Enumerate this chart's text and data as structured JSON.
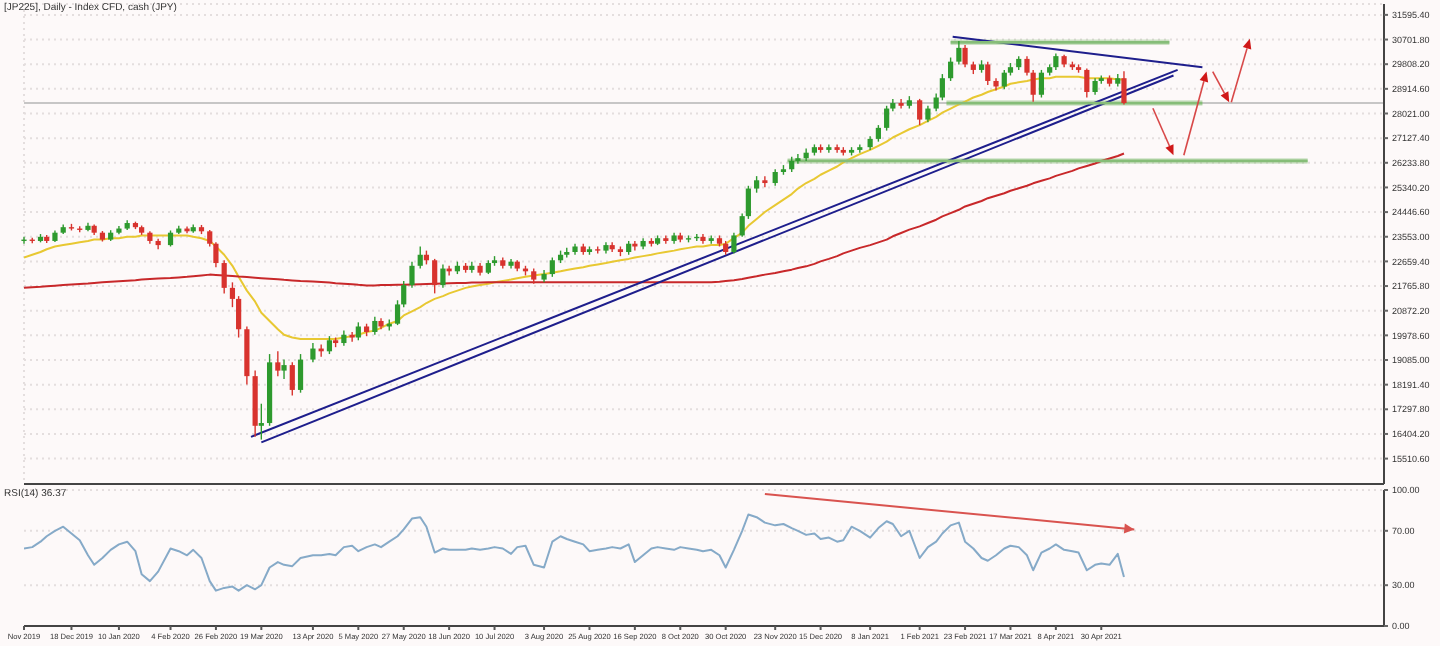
{
  "chart_data": [
    {
      "type": "candlestick",
      "title": "[JP225], Daily - Index CFD, cash (JPY)",
      "x": [
        "2019-11-25",
        "2019-11-29",
        "2019-12-03",
        "2019-12-06",
        "2019-12-10",
        "2019-12-14",
        "2019-12-18",
        "2019-12-22",
        "2019-12-26",
        "2019-12-29",
        "2020-01-02",
        "2020-01-06",
        "2020-01-10",
        "2020-01-14",
        "2020-01-18",
        "2020-01-21",
        "2020-01-25",
        "2020-01-29",
        "2020-02-04",
        "2020-02-08",
        "2020-02-12",
        "2020-02-15",
        "2020-02-19",
        "2020-02-23",
        "2020-02-26",
        "2020-03-01",
        "2020-03-05",
        "2020-03-08",
        "2020-03-12",
        "2020-03-16",
        "2020-03-19",
        "2020-03-23",
        "2020-03-27",
        "2020-03-30",
        "2020-04-03",
        "2020-04-07",
        "2020-04-13",
        "2020-04-17",
        "2020-04-21",
        "2020-04-24",
        "2020-04-28",
        "2020-05-02",
        "2020-05-05",
        "2020-05-09",
        "2020-05-13",
        "2020-05-16",
        "2020-05-20",
        "2020-05-24",
        "2020-05-27",
        "2020-05-31",
        "2020-06-04",
        "2020-06-07",
        "2020-06-11",
        "2020-06-15",
        "2020-06-18",
        "2020-06-22",
        "2020-06-26",
        "2020-06-29",
        "2020-07-03",
        "2020-07-07",
        "2020-07-10",
        "2020-07-14",
        "2020-07-18",
        "2020-07-21",
        "2020-07-25",
        "2020-07-29",
        "2020-08-03",
        "2020-08-07",
        "2020-08-11",
        "2020-08-14",
        "2020-08-18",
        "2020-08-22",
        "2020-08-25",
        "2020-08-29",
        "2020-09-02",
        "2020-09-05",
        "2020-09-09",
        "2020-09-13",
        "2020-09-16",
        "2020-09-20",
        "2020-09-24",
        "2020-09-27",
        "2020-10-01",
        "2020-10-05",
        "2020-10-08",
        "2020-10-12",
        "2020-10-16",
        "2020-10-19",
        "2020-10-23",
        "2020-10-27",
        "2020-10-30",
        "2020-11-03",
        "2020-11-07",
        "2020-11-10",
        "2020-11-14",
        "2020-11-18",
        "2020-11-23",
        "2020-11-27",
        "2020-12-01",
        "2020-12-04",
        "2020-12-08",
        "2020-12-12",
        "2020-12-15",
        "2020-12-19",
        "2020-12-23",
        "2020-12-26",
        "2020-12-30",
        "2021-01-03",
        "2021-01-08",
        "2021-01-12",
        "2021-01-16",
        "2021-01-19",
        "2021-01-23",
        "2021-01-27",
        "2021-02-01",
        "2021-02-05",
        "2021-02-09",
        "2021-02-12",
        "2021-02-16",
        "2021-02-20",
        "2021-02-23",
        "2021-02-27",
        "2021-03-03",
        "2021-03-06",
        "2021-03-10",
        "2021-03-14",
        "2021-03-17",
        "2021-03-21",
        "2021-03-25",
        "2021-03-28",
        "2021-04-01",
        "2021-04-05",
        "2021-04-08",
        "2021-04-12",
        "2021-04-16",
        "2021-04-19",
        "2021-04-23",
        "2021-04-27",
        "2021-04-30",
        "2021-05-04",
        "2021-05-08",
        "2021-05-11"
      ],
      "ohlc": [
        [
          23400,
          23550,
          23300,
          23450
        ],
        [
          23450,
          23520,
          23320,
          23400
        ],
        [
          23400,
          23650,
          23350,
          23550
        ],
        [
          23550,
          23620,
          23330,
          23400
        ],
        [
          23400,
          23780,
          23360,
          23700
        ],
        [
          23700,
          24000,
          23650,
          23900
        ],
        [
          23900,
          24020,
          23780,
          23850
        ],
        [
          23850,
          23930,
          23720,
          23800
        ],
        [
          23800,
          24060,
          23750,
          23950
        ],
        [
          23950,
          24000,
          23620,
          23700
        ],
        [
          23700,
          23760,
          23380,
          23450
        ],
        [
          23450,
          23790,
          23400,
          23700
        ],
        [
          23700,
          23940,
          23640,
          23850
        ],
        [
          23850,
          24150,
          23800,
          24050
        ],
        [
          24050,
          24100,
          23830,
          23900
        ],
        [
          23900,
          23960,
          23620,
          23700
        ],
        [
          23700,
          23750,
          23300,
          23400
        ],
        [
          23400,
          23480,
          23100,
          23250
        ],
        [
          23250,
          23780,
          23200,
          23700
        ],
        [
          23700,
          23950,
          23650,
          23850
        ],
        [
          23850,
          23920,
          23680,
          23750
        ],
        [
          23750,
          24000,
          23700,
          23900
        ],
        [
          23900,
          23980,
          23650,
          23750
        ],
        [
          23750,
          23800,
          23200,
          23300
        ],
        [
          23300,
          23350,
          22450,
          22600
        ],
        [
          22600,
          22700,
          21500,
          21700
        ],
        [
          21700,
          21900,
          21000,
          21300
        ],
        [
          21300,
          21400,
          19900,
          20200
        ],
        [
          20200,
          20300,
          18200,
          18500
        ],
        [
          18500,
          18700,
          16300,
          16700
        ],
        [
          16700,
          17500,
          16200,
          16800
        ],
        [
          16800,
          19300,
          16700,
          19000
        ],
        [
          19000,
          19400,
          18500,
          18700
        ],
        [
          18700,
          19100,
          18400,
          18900
        ],
        [
          18900,
          19000,
          17800,
          18000
        ],
        [
          18000,
          19300,
          17900,
          19100
        ],
        [
          19100,
          19700,
          19000,
          19500
        ],
        [
          19500,
          19650,
          19200,
          19400
        ],
        [
          19400,
          19950,
          19300,
          19800
        ],
        [
          19800,
          19900,
          19550,
          19700
        ],
        [
          19700,
          20150,
          19600,
          20000
        ],
        [
          20000,
          20100,
          19750,
          19900
        ],
        [
          19900,
          20450,
          19800,
          20300
        ],
        [
          20300,
          20400,
          19950,
          20100
        ],
        [
          20100,
          20650,
          20000,
          20500
        ],
        [
          20500,
          20600,
          20200,
          20300
        ],
        [
          20300,
          20550,
          20150,
          20400
        ],
        [
          20400,
          21250,
          20350,
          21100
        ],
        [
          21100,
          21950,
          21000,
          21800
        ],
        [
          21800,
          22650,
          21700,
          22500
        ],
        [
          22500,
          23200,
          22400,
          22900
        ],
        [
          22900,
          23050,
          22550,
          22700
        ],
        [
          22700,
          22750,
          21500,
          21800
        ],
        [
          21800,
          22550,
          21700,
          22400
        ],
        [
          22400,
          22500,
          22150,
          22300
        ],
        [
          22300,
          22650,
          22200,
          22500
        ],
        [
          22500,
          22600,
          22250,
          22350
        ],
        [
          22350,
          22650,
          22250,
          22500
        ],
        [
          22500,
          22600,
          22150,
          22250
        ],
        [
          22250,
          22700,
          22200,
          22600
        ],
        [
          22600,
          22850,
          22500,
          22700
        ],
        [
          22700,
          22800,
          22400,
          22500
        ],
        [
          22500,
          22750,
          22400,
          22650
        ],
        [
          22650,
          22700,
          22300,
          22400
        ],
        [
          22400,
          22500,
          22150,
          22300
        ],
        [
          22300,
          22400,
          21850,
          22000
        ],
        [
          22000,
          22350,
          21900,
          22200
        ],
        [
          22200,
          22800,
          22100,
          22700
        ],
        [
          22700,
          23050,
          22600,
          22900
        ],
        [
          22900,
          23150,
          22800,
          23000
        ],
        [
          23000,
          23300,
          22900,
          23200
        ],
        [
          23200,
          23300,
          22900,
          23000
        ],
        [
          23000,
          23200,
          22900,
          23100
        ],
        [
          23100,
          23200,
          22950,
          23050
        ],
        [
          23050,
          23350,
          22950,
          23250
        ],
        [
          23250,
          23350,
          23000,
          23100
        ],
        [
          23100,
          23200,
          22850,
          23000
        ],
        [
          23000,
          23400,
          22900,
          23300
        ],
        [
          23300,
          23400,
          23050,
          23200
        ],
        [
          23200,
          23500,
          23100,
          23400
        ],
        [
          23400,
          23500,
          23200,
          23300
        ],
        [
          23300,
          23600,
          23250,
          23500
        ],
        [
          23500,
          23600,
          23300,
          23400
        ],
        [
          23400,
          23700,
          23300,
          23600
        ],
        [
          23600,
          23700,
          23350,
          23450
        ],
        [
          23450,
          23600,
          23350,
          23500
        ],
        [
          23500,
          23650,
          23400,
          23550
        ],
        [
          23550,
          23650,
          23300,
          23400
        ],
        [
          23400,
          23600,
          23300,
          23500
        ],
        [
          23500,
          23600,
          23200,
          23300
        ],
        [
          23300,
          23400,
          22900,
          23000
        ],
        [
          23000,
          23700,
          22950,
          23600
        ],
        [
          23600,
          24400,
          23550,
          24300
        ],
        [
          24300,
          25400,
          24200,
          25300
        ],
        [
          25300,
          25750,
          25150,
          25600
        ],
        [
          25600,
          25750,
          25350,
          25500
        ],
        [
          25500,
          26000,
          25400,
          25900
        ],
        [
          25900,
          26150,
          25800,
          26000
        ],
        [
          26000,
          26450,
          25900,
          26300
        ],
        [
          26300,
          26550,
          26200,
          26400
        ],
        [
          26400,
          26750,
          26300,
          26600
        ],
        [
          26600,
          26900,
          26500,
          26800
        ],
        [
          26800,
          26900,
          26600,
          26700
        ],
        [
          26700,
          26900,
          26600,
          26800
        ],
        [
          26800,
          26900,
          26600,
          26700
        ],
        [
          26700,
          26800,
          26500,
          26600
        ],
        [
          26600,
          26800,
          26500,
          26700
        ],
        [
          26700,
          26900,
          26600,
          26800
        ],
        [
          26800,
          27200,
          26700,
          27100
        ],
        [
          27100,
          27600,
          27000,
          27500
        ],
        [
          27500,
          28300,
          27400,
          28200
        ],
        [
          28200,
          28550,
          28100,
          28400
        ],
        [
          28400,
          28550,
          28200,
          28300
        ],
        [
          28300,
          28650,
          28200,
          28500
        ],
        [
          28500,
          28550,
          27600,
          27800
        ],
        [
          27800,
          28300,
          27700,
          28200
        ],
        [
          28200,
          28750,
          28100,
          28600
        ],
        [
          28600,
          29450,
          28500,
          29300
        ],
        [
          29300,
          30050,
          29200,
          29900
        ],
        [
          29900,
          30650,
          29800,
          30400
        ],
        [
          30400,
          30500,
          29700,
          29800
        ],
        [
          29800,
          29900,
          29450,
          29600
        ],
        [
          29600,
          29950,
          29500,
          29800
        ],
        [
          29800,
          29900,
          29050,
          29200
        ],
        [
          29200,
          29300,
          28850,
          29000
        ],
        [
          29000,
          29600,
          28900,
          29500
        ],
        [
          29500,
          29850,
          29400,
          29700
        ],
        [
          29700,
          30100,
          29600,
          30000
        ],
        [
          30000,
          30100,
          29400,
          29500
        ],
        [
          29500,
          29600,
          28450,
          28700
        ],
        [
          28700,
          29600,
          28600,
          29500
        ],
        [
          29500,
          29800,
          29400,
          29700
        ],
        [
          29700,
          30200,
          29600,
          30100
        ],
        [
          30100,
          30150,
          29700,
          29800
        ],
        [
          29800,
          29900,
          29600,
          29700
        ],
        [
          29700,
          29800,
          29500,
          29600
        ],
        [
          29600,
          29650,
          28600,
          28800
        ],
        [
          28800,
          29300,
          28700,
          29200
        ],
        [
          29200,
          29400,
          29100,
          29300
        ],
        [
          29300,
          29400,
          29000,
          29100
        ],
        [
          29100,
          29450,
          29000,
          29300
        ],
        [
          29300,
          29550,
          28350,
          28400
        ]
      ],
      "colors": [
        "#2e9a2e",
        "#d8332e",
        "#2e9a2e",
        "#d8332e",
        "#2e9a2e",
        "#2e9a2e",
        "#d8332e",
        "#d8332e",
        "#2e9a2e",
        "#d8332e",
        "#d8332e",
        "#2e9a2e",
        "#2e9a2e",
        "#2e9a2e",
        "#d8332e",
        "#d8332e",
        "#d8332e",
        "#d8332e",
        "#2e9a2e",
        "#2e9a2e",
        "#d8332e",
        "#2e9a2e",
        "#d8332e",
        "#d8332e",
        "#d8332e",
        "#d8332e",
        "#d8332e",
        "#d8332e",
        "#d8332e",
        "#d8332e",
        "#2e9a2e",
        "#2e9a2e",
        "#d8332e",
        "#2e9a2e",
        "#d8332e",
        "#2e9a2e",
        "#2e9a2e",
        "#d8332e",
        "#2e9a2e",
        "#d8332e",
        "#2e9a2e",
        "#d8332e",
        "#2e9a2e",
        "#d8332e",
        "#2e9a2e",
        "#d8332e",
        "#2e9a2e",
        "#2e9a2e",
        "#2e9a2e",
        "#2e9a2e",
        "#2e9a2e",
        "#d8332e",
        "#d8332e",
        "#2e9a2e",
        "#d8332e",
        "#2e9a2e",
        "#d8332e",
        "#2e9a2e",
        "#d8332e",
        "#2e9a2e",
        "#2e9a2e",
        "#d8332e",
        "#2e9a2e",
        "#d8332e",
        "#d8332e",
        "#d8332e",
        "#2e9a2e",
        "#2e9a2e",
        "#2e9a2e",
        "#2e9a2e",
        "#2e9a2e",
        "#d8332e",
        "#2e9a2e",
        "#d8332e",
        "#2e9a2e",
        "#d8332e",
        "#d8332e",
        "#2e9a2e",
        "#d8332e",
        "#2e9a2e",
        "#d8332e",
        "#2e9a2e",
        "#d8332e",
        "#2e9a2e",
        "#d8332e",
        "#2e9a2e",
        "#2e9a2e",
        "#d8332e",
        "#2e9a2e",
        "#d8332e",
        "#d8332e",
        "#2e9a2e",
        "#2e9a2e",
        "#2e9a2e",
        "#2e9a2e",
        "#d8332e",
        "#2e9a2e",
        "#2e9a2e",
        "#2e9a2e",
        "#2e9a2e",
        "#2e9a2e",
        "#2e9a2e",
        "#d8332e",
        "#2e9a2e",
        "#d8332e",
        "#d8332e",
        "#2e9a2e",
        "#2e9a2e",
        "#2e9a2e",
        "#2e9a2e",
        "#2e9a2e",
        "#2e9a2e",
        "#d8332e",
        "#2e9a2e",
        "#d8332e",
        "#2e9a2e",
        "#2e9a2e",
        "#2e9a2e",
        "#2e9a2e",
        "#2e9a2e",
        "#d8332e",
        "#d8332e",
        "#2e9a2e",
        "#d8332e",
        "#d8332e",
        "#2e9a2e",
        "#2e9a2e",
        "#2e9a2e",
        "#d8332e",
        "#d8332e",
        "#2e9a2e",
        "#2e9a2e",
        "#2e9a2e",
        "#d8332e",
        "#d8332e",
        "#d8332e",
        "#d8332e",
        "#2e9a2e",
        "#2e9a2e",
        "#d8332e",
        "#2e9a2e",
        "#d8332e"
      ],
      "series": [
        {
          "type": "line",
          "color": "#e8c832",
          "values": [
            22800,
            22900,
            23000,
            23100,
            23200,
            23250,
            23300,
            23350,
            23400,
            23450,
            23450,
            23500,
            23500,
            23550,
            23550,
            23600,
            23600,
            23600,
            23600,
            23600,
            23600,
            23550,
            23500,
            23400,
            23200,
            22900,
            22500,
            22100,
            21600,
            21200,
            20800,
            20500,
            20200,
            20000,
            19900,
            19850,
            19850,
            19850,
            19850,
            19850,
            19900,
            19950,
            20000,
            20100,
            20150,
            20250,
            20400,
            20500,
            20700,
            20850,
            21000,
            21150,
            21300,
            21400,
            21500,
            21600,
            21700,
            21750,
            21800,
            21850,
            21900,
            21950,
            22000,
            22050,
            22100,
            22150,
            22200,
            22250,
            22300,
            22350,
            22400,
            22450,
            22500,
            22550,
            22600,
            22650,
            22700,
            22750,
            22800,
            22850,
            22900,
            22950,
            23000,
            23050,
            23100,
            23150,
            23200,
            23200,
            23250,
            23250,
            23300,
            23500,
            23700,
            23950,
            24200,
            24450,
            24700,
            24900,
            25100,
            25300,
            25500,
            25650,
            25800,
            25950,
            26100,
            26250,
            26400,
            26550,
            26700,
            26850,
            27000,
            27150,
            27300,
            27450,
            27600,
            27750,
            27900,
            28050,
            28200,
            28350,
            28450,
            28600,
            28700,
            28800,
            28900,
            29000,
            29100,
            29150,
            29200,
            29250,
            29300,
            29300,
            29350,
            29350,
            29350,
            29350,
            29300,
            29300,
            29300,
            29300,
            29250,
            29250
          ]
        },
        {
          "type": "line",
          "color": "#c8282a",
          "values": [
            21700,
            21720,
            21740,
            21760,
            21780,
            21800,
            21820,
            21840,
            21860,
            21880,
            21900,
            21920,
            21940,
            21960,
            21980,
            22000,
            22020,
            22040,
            22060,
            22080,
            22100,
            22120,
            22150,
            22180,
            22170,
            22150,
            22130,
            22110,
            22090,
            22070,
            22050,
            22030,
            22010,
            21990,
            21970,
            21950,
            21930,
            21910,
            21890,
            21870,
            21850,
            21830,
            21810,
            21790,
            21790,
            21800,
            21800,
            21810,
            21810,
            21820,
            21830,
            21840,
            21850,
            21860,
            21870,
            21880,
            21880,
            21890,
            21890,
            21900,
            21900,
            21900,
            21900,
            21900,
            21900,
            21900,
            21900,
            21900,
            21900,
            21900,
            21900,
            21900,
            21900,
            21900,
            21900,
            21900,
            21900,
            21900,
            21900,
            21900,
            21900,
            21900,
            21900,
            21900,
            21900,
            21900,
            21900,
            21900,
            21900,
            21920,
            21950,
            21980,
            22020,
            22070,
            22120,
            22180,
            22240,
            22300,
            22360,
            22420,
            22480,
            22570,
            22660,
            22750,
            22850,
            22950,
            23050,
            23150,
            23250,
            23350,
            23450,
            23570,
            23690,
            23810,
            23930,
            24050,
            24170,
            24290,
            24410,
            24530,
            24650,
            24750,
            24850,
            24950,
            25040,
            25130,
            25220,
            25310,
            25400,
            25490,
            25580,
            25670,
            25760,
            25850,
            25940,
            26030,
            26120,
            26210,
            26300,
            26390,
            26480,
            26570
          ]
        },
        {
          "type": "line",
          "color": "#1e1e8c",
          "x": [
            "2020-03-14",
            "2021-06-06"
          ],
          "values": [
            16300,
            29600
          ]
        },
        {
          "type": "line",
          "color": "#1e1e8c",
          "x": [
            "2020-03-19",
            "2021-06-04"
          ],
          "values": [
            16100,
            29400
          ]
        },
        {
          "type": "line",
          "color": "#1e1e8c",
          "x": [
            "2021-02-17",
            "2021-06-18"
          ],
          "values": [
            30800,
            29700
          ]
        },
        {
          "type": "line",
          "color": "#86bd78",
          "x": [
            "2021-02-16",
            "2021-06-02"
          ],
          "values": [
            30600,
            30600
          ],
          "lower": [
            30500,
            30500
          ],
          "upper": [
            30700,
            30700
          ]
        },
        {
          "type": "line",
          "color": "#86bd78",
          "x": [
            "2021-02-14",
            "2021-06-18"
          ],
          "values": [
            28400,
            28400
          ],
          "lower": [
            28300,
            28300
          ],
          "upper": [
            28500,
            28500
          ]
        },
        {
          "type": "line",
          "color": "#86bd78",
          "x": [
            "2020-11-29",
            "2021-08-08"
          ],
          "values": [
            26300,
            26300
          ],
          "lower": [
            26200,
            26200
          ],
          "upper": [
            26400,
            26400
          ]
        }
      ],
      "ref_lines": [
        {
          "axis": "y",
          "value": 28400,
          "color": "#b4b4b4"
        }
      ],
      "xlim": [
        "2019-11-25",
        "2021-09-14"
      ],
      "xticks": [
        {
          "value": "2019-11-25",
          "label": null
        },
        {
          "value": "2019-12-18",
          "label": null
        },
        {
          "value": "2020-01-10",
          "label": null
        },
        {
          "value": "2020-02-04",
          "label": null
        },
        {
          "value": "2020-02-26",
          "label": null
        },
        {
          "value": "2020-03-19",
          "label": null
        },
        {
          "value": "2020-04-13",
          "label": null
        },
        {
          "value": "2020-05-05",
          "label": null
        },
        {
          "value": "2020-05-27",
          "label": null
        },
        {
          "value": "2020-06-18",
          "label": null
        },
        {
          "value": "2020-07-10",
          "label": null
        },
        {
          "value": "2020-08-03",
          "label": null
        },
        {
          "value": "2020-08-25",
          "label": null
        },
        {
          "value": "2020-09-16",
          "label": null
        },
        {
          "value": "2020-10-08",
          "label": null
        },
        {
          "value": "2020-10-30",
          "label": null
        },
        {
          "value": "2020-11-23",
          "label": null
        },
        {
          "value": "2020-12-15",
          "label": null
        },
        {
          "value": "2021-01-08",
          "label": null
        },
        {
          "value": "2021-02-01",
          "label": null
        },
        {
          "value": "2021-02-23",
          "label": null
        },
        {
          "value": "2021-03-17",
          "label": null
        },
        {
          "value": "2021-04-08",
          "label": null
        },
        {
          "value": "2021-04-30",
          "label": null
        }
      ],
      "ylim": [
        14590,
        31990
      ],
      "yticks": [
        {
          "value": 15510.6,
          "label": "15510.60"
        },
        {
          "value": 16404.2,
          "label": "16404.20"
        },
        {
          "value": 17297.8,
          "label": "17297.80"
        },
        {
          "value": 18191.4,
          "label": "18191.40"
        },
        {
          "value": 19085,
          "label": "19085.00"
        },
        {
          "value": 19978.6,
          "label": "19978.60"
        },
        {
          "value": 20872.2,
          "label": "20872.20"
        },
        {
          "value": 21765.8,
          "label": "21765.80"
        },
        {
          "value": 22659.4,
          "label": "22659.40"
        },
        {
          "value": 23553,
          "label": "23553.00"
        },
        {
          "value": 24446.6,
          "label": "24446.60"
        },
        {
          "value": 25340.2,
          "label": "25340.20"
        },
        {
          "value": 26233.8,
          "label": "26233.80"
        },
        {
          "value": 27127.4,
          "label": "27127.40"
        },
        {
          "value": 28021,
          "label": "28021.00"
        },
        {
          "value": 28914.6,
          "label": "28914.60"
        },
        {
          "value": 29808.2,
          "label": "29808.20"
        },
        {
          "value": 30701.8,
          "label": "30701.80"
        },
        {
          "value": 31595.4,
          "label": "31595.40"
        }
      ],
      "grid": true,
      "tick_labels": "y"
    },
    {
      "type": "line",
      "title": "RSI(14) 36.37",
      "x": [
        "2019-11-25",
        "2019-11-29",
        "2019-12-03",
        "2019-12-06",
        "2019-12-10",
        "2019-12-14",
        "2019-12-18",
        "2019-12-22",
        "2019-12-26",
        "2019-12-29",
        "2020-01-02",
        "2020-01-06",
        "2020-01-10",
        "2020-01-14",
        "2020-01-18",
        "2020-01-21",
        "2020-01-25",
        "2020-01-29",
        "2020-02-04",
        "2020-02-08",
        "2020-02-12",
        "2020-02-15",
        "2020-02-19",
        "2020-02-23",
        "2020-02-26",
        "2020-03-01",
        "2020-03-05",
        "2020-03-08",
        "2020-03-12",
        "2020-03-16",
        "2020-03-19",
        "2020-03-23",
        "2020-03-27",
        "2020-03-30",
        "2020-04-03",
        "2020-04-07",
        "2020-04-13",
        "2020-04-17",
        "2020-04-21",
        "2020-04-24",
        "2020-04-28",
        "2020-05-02",
        "2020-05-05",
        "2020-05-09",
        "2020-05-13",
        "2020-05-16",
        "2020-05-20",
        "2020-05-24",
        "2020-05-27",
        "2020-05-31",
        "2020-06-04",
        "2020-06-07",
        "2020-06-11",
        "2020-06-15",
        "2020-06-18",
        "2020-06-22",
        "2020-06-26",
        "2020-06-29",
        "2020-07-03",
        "2020-07-07",
        "2020-07-10",
        "2020-07-14",
        "2020-07-18",
        "2020-07-21",
        "2020-07-25",
        "2020-07-29",
        "2020-08-03",
        "2020-08-07",
        "2020-08-11",
        "2020-08-14",
        "2020-08-18",
        "2020-08-22",
        "2020-08-25",
        "2020-08-29",
        "2020-09-02",
        "2020-09-05",
        "2020-09-09",
        "2020-09-13",
        "2020-09-16",
        "2020-09-20",
        "2020-09-24",
        "2020-09-27",
        "2020-10-01",
        "2020-10-05",
        "2020-10-08",
        "2020-10-12",
        "2020-10-16",
        "2020-10-19",
        "2020-10-23",
        "2020-10-27",
        "2020-10-30",
        "2020-11-03",
        "2020-11-07",
        "2020-11-10",
        "2020-11-14",
        "2020-11-18",
        "2020-11-23",
        "2020-11-27",
        "2020-12-01",
        "2020-12-04",
        "2020-12-08",
        "2020-12-12",
        "2020-12-15",
        "2020-12-19",
        "2020-12-23",
        "2020-12-26",
        "2020-12-30",
        "2021-01-03",
        "2021-01-08",
        "2021-01-12",
        "2021-01-16",
        "2021-01-19",
        "2021-01-23",
        "2021-01-27",
        "2021-02-01",
        "2021-02-05",
        "2021-02-09",
        "2021-02-12",
        "2021-02-16",
        "2021-02-20",
        "2021-02-23",
        "2021-02-27",
        "2021-03-03",
        "2021-03-06",
        "2021-03-10",
        "2021-03-14",
        "2021-03-17",
        "2021-03-21",
        "2021-03-25",
        "2021-03-28",
        "2021-04-01",
        "2021-04-05",
        "2021-04-08",
        "2021-04-12",
        "2021-04-16",
        "2021-04-19",
        "2021-04-23",
        "2021-04-27",
        "2021-04-30",
        "2021-05-04",
        "2021-05-08",
        "2021-05-11"
      ],
      "series": [
        {
          "color": "#86aac8",
          "values": [
            57,
            58,
            62,
            66,
            70,
            73,
            68,
            63,
            52,
            45,
            50,
            56,
            60,
            62,
            55,
            38,
            33,
            40,
            57,
            55,
            52,
            56,
            50,
            33,
            26,
            28,
            29,
            26,
            30,
            27,
            30,
            43,
            47,
            45,
            44,
            50,
            52,
            52,
            53,
            52,
            58,
            59,
            55,
            58,
            60,
            58,
            62,
            66,
            71,
            79,
            80,
            73,
            54,
            57,
            56,
            56,
            56,
            57,
            56,
            57,
            58,
            57,
            53,
            58,
            59,
            45,
            43,
            62,
            66,
            64,
            62,
            60,
            55,
            56,
            57,
            58,
            57,
            60,
            47,
            52,
            57,
            58,
            57,
            56,
            58,
            57,
            56,
            55,
            56,
            52,
            43,
            56,
            70,
            82,
            80,
            76,
            74,
            75,
            72,
            70,
            67,
            68,
            64,
            65,
            62,
            63,
            73,
            70,
            65,
            72,
            77,
            75,
            66,
            70,
            50,
            58,
            62,
            68,
            74,
            76,
            62,
            57,
            50,
            48,
            52,
            57,
            59,
            58,
            52,
            41,
            54,
            57,
            60,
            56,
            55,
            54,
            41,
            45,
            46,
            45,
            53,
            36
          ]
        },
        {
          "color": "#d9534f",
          "x": [
            "2020-11-18",
            "2021-05-16"
          ],
          "values": [
            97,
            71
          ]
        }
      ],
      "xlim": [
        "2019-11-25",
        "2021-09-14"
      ],
      "xticks": [
        {
          "value": "2019-11-25",
          "label": "Nov 2019"
        },
        {
          "value": "2019-12-18",
          "label": "18 Dec 2019"
        },
        {
          "value": "2020-01-10",
          "label": "10 Jan 2020"
        },
        {
          "value": "2020-02-04",
          "label": "4 Feb 2020"
        },
        {
          "value": "2020-02-26",
          "label": "26 Feb 2020"
        },
        {
          "value": "2020-03-19",
          "label": "19 Mar 2020"
        },
        {
          "value": "2020-04-13",
          "label": "13 Apr 2020"
        },
        {
          "value": "2020-05-05",
          "label": "5 May 2020"
        },
        {
          "value": "2020-05-27",
          "label": "27 May 2020"
        },
        {
          "value": "2020-06-18",
          "label": "18 Jun 2020"
        },
        {
          "value": "2020-07-10",
          "label": "10 Jul 2020"
        },
        {
          "value": "2020-08-03",
          "label": "3 Aug 2020"
        },
        {
          "value": "2020-08-25",
          "label": "25 Aug 2020"
        },
        {
          "value": "2020-09-16",
          "label": "16 Sep 2020"
        },
        {
          "value": "2020-10-08",
          "label": "8 Oct 2020"
        },
        {
          "value": "2020-10-30",
          "label": "30 Oct 2020"
        },
        {
          "value": "2020-11-23",
          "label": "23 Nov 2020"
        },
        {
          "value": "2020-12-15",
          "label": "15 Dec 2020"
        },
        {
          "value": "2021-01-08",
          "label": "8 Jan 2021"
        },
        {
          "value": "2021-02-01",
          "label": "1 Feb 2021"
        },
        {
          "value": "2021-02-23",
          "label": "23 Feb 2021"
        },
        {
          "value": "2021-03-17",
          "label": "17 Mar 2021"
        },
        {
          "value": "2021-04-08",
          "label": "8 Apr 2021"
        },
        {
          "value": "2021-04-30",
          "label": "30 Apr 2021"
        }
      ],
      "ylim": [
        0,
        100
      ],
      "yticks": [
        {
          "value": 0,
          "label": "0.00"
        },
        {
          "value": 30,
          "label": "30.00"
        },
        {
          "value": 70,
          "label": "70.00"
        },
        {
          "value": 100,
          "label": "100.00"
        }
      ],
      "grid": "y"
    }
  ]
}
